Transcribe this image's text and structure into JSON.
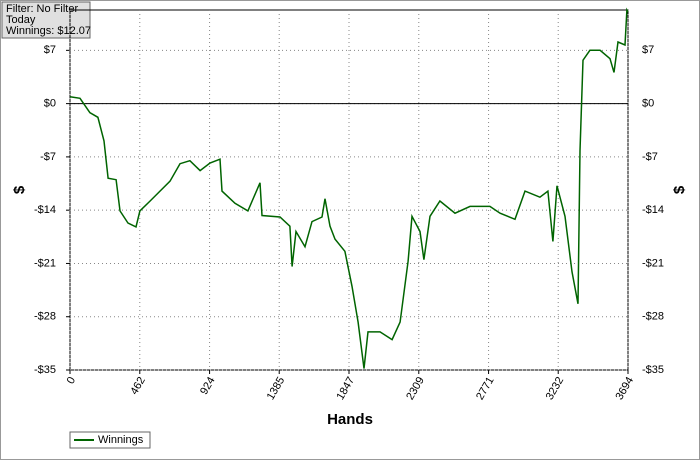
{
  "chart_data": {
    "type": "line",
    "filter": [
      "Filter: No Filter",
      "Today",
      "Winnings: $12.07"
    ],
    "xlabel": "Hands",
    "ylabel": "$",
    "xlim": [
      0,
      3694
    ],
    "xticks": [
      0,
      462,
      924,
      1385,
      1847,
      2309,
      2771,
      3232,
      3694
    ],
    "ylim": [
      -35,
      12.3
    ],
    "yticks": [
      {
        "value": 7,
        "label": "$7"
      },
      {
        "value": 0,
        "label": "$0"
      },
      {
        "value": -7,
        "label": "-$7"
      },
      {
        "value": -14,
        "label": "-$14"
      },
      {
        "value": -21,
        "label": "-$21"
      },
      {
        "value": -28,
        "label": "-$28"
      },
      {
        "value": -35,
        "label": "-$35"
      }
    ],
    "grid": true,
    "x": [
      0,
      66,
      132,
      185,
      225,
      252,
      305,
      331,
      384,
      437,
      463,
      530,
      596,
      662,
      728,
      794,
      861,
      927,
      993,
      1006,
      1092,
      1178,
      1258,
      1271,
      1390,
      1456,
      1470,
      1496,
      1556,
      1602,
      1668,
      1688,
      1721,
      1754,
      1820,
      1867,
      1907,
      1946,
      1973,
      2052,
      2132,
      2185,
      2238,
      2264,
      2317,
      2343,
      2383,
      2449,
      2549,
      2648,
      2780,
      2847,
      2946,
      3012,
      3111,
      3164,
      3197,
      3224,
      3277,
      3323,
      3363,
      3376,
      3396,
      3442,
      3509,
      3575,
      3601,
      3628,
      3674,
      3687,
      3694
    ],
    "series": [
      {
        "name": "Winnings",
        "color": "#006400",
        "values": [
          0.9,
          0.7,
          -1.2,
          -1.8,
          -4.9,
          -9.8,
          -10,
          -14.1,
          -15.7,
          -16.2,
          -14.1,
          -12.8,
          -11.5,
          -10.2,
          -7.9,
          -7.5,
          -8.8,
          -7.8,
          -7.3,
          -11.5,
          -13.1,
          -14.1,
          -10.4,
          -14.7,
          -14.9,
          -16.1,
          -21.4,
          -16.8,
          -18.8,
          -15.5,
          -14.9,
          -12.5,
          -16.1,
          -17.8,
          -19.4,
          -24,
          -28.7,
          -34.8,
          -30,
          -30,
          -31,
          -28.7,
          -20.7,
          -14.8,
          -16.8,
          -20.5,
          -14.8,
          -12.8,
          -14.4,
          -13.5,
          -13.5,
          -14.4,
          -15.2,
          -11.5,
          -12.3,
          -11.5,
          -18.1,
          -10.8,
          -14.8,
          -22.1,
          -26.3,
          -6.2,
          5.7,
          7,
          7,
          5.9,
          4.1,
          8.1,
          7.7,
          12.3,
          12.07
        ]
      }
    ]
  }
}
